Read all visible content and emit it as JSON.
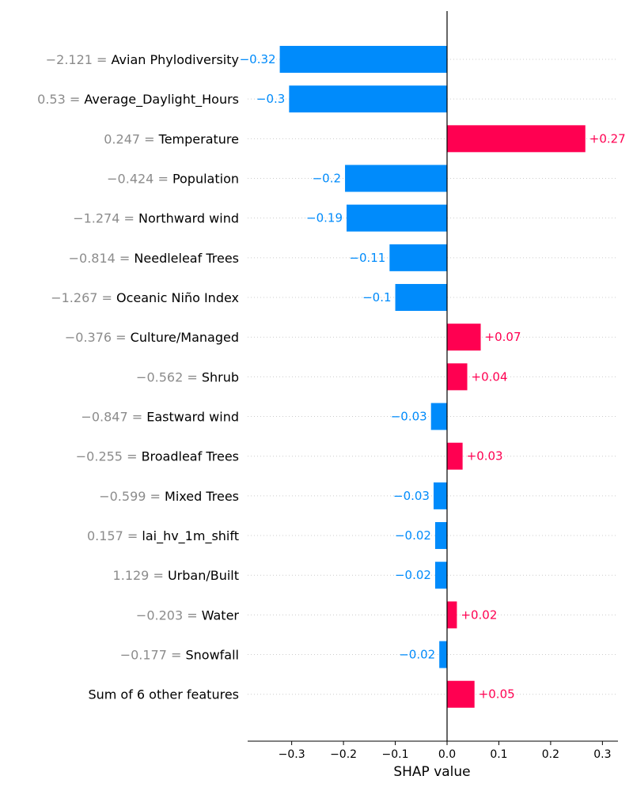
{
  "chart_data": {
    "type": "bar",
    "orientation": "horizontal",
    "xlabel": "SHAP value",
    "xlim": [
      -0.385,
      0.33
    ],
    "xticks": [
      -0.3,
      -0.2,
      -0.1,
      0.0,
      0.1,
      0.2,
      0.3
    ],
    "xtick_labels": [
      "−0.3",
      "−0.2",
      "−0.1",
      "0.0",
      "0.1",
      "0.2",
      "0.3"
    ],
    "colors": {
      "positive": "#ff0051",
      "negative": "#008bfb",
      "value_text": "#8c8c8c",
      "grid": "#cccccc"
    },
    "features": [
      {
        "value": "−2.121",
        "name": "Avian Phylodiversity",
        "shap": -0.323,
        "label": "−0.32"
      },
      {
        "value": "0.53",
        "name": "Average_Daylight_Hours",
        "shap": -0.305,
        "label": "−0.3"
      },
      {
        "value": "0.247",
        "name": "Temperature",
        "shap": 0.267,
        "label": "+0.27"
      },
      {
        "value": "−0.424",
        "name": "Population",
        "shap": -0.197,
        "label": "−0.2"
      },
      {
        "value": "−1.274",
        "name": "Northward wind",
        "shap": -0.194,
        "label": "−0.19"
      },
      {
        "value": "−0.814",
        "name": "Needleleaf Trees",
        "shap": -0.111,
        "label": "−0.11"
      },
      {
        "value": "−1.267",
        "name": "Oceanic Niño Index",
        "shap": -0.1,
        "label": "−0.1"
      },
      {
        "value": "−0.376",
        "name": "Culture/Managed",
        "shap": 0.065,
        "label": "+0.07"
      },
      {
        "value": "−0.562",
        "name": "Shrub",
        "shap": 0.039,
        "label": "+0.04"
      },
      {
        "value": "−0.847",
        "name": "Eastward wind",
        "shap": -0.031,
        "label": "−0.03"
      },
      {
        "value": "−0.255",
        "name": "Broadleaf Trees",
        "shap": 0.03,
        "label": "+0.03"
      },
      {
        "value": "−0.599",
        "name": "Mixed Trees",
        "shap": -0.026,
        "label": "−0.03"
      },
      {
        "value": "0.157",
        "name": "lai_hv_1m_shift",
        "shap": -0.023,
        "label": "−0.02"
      },
      {
        "value": "1.129",
        "name": "Urban/Built",
        "shap": -0.023,
        "label": "−0.02"
      },
      {
        "value": "−0.203",
        "name": "Water",
        "shap": 0.019,
        "label": "+0.02"
      },
      {
        "value": "−0.177",
        "name": "Snowfall",
        "shap": -0.015,
        "label": "−0.02"
      },
      {
        "value": "",
        "name": "Sum of 6 other features",
        "shap": 0.053,
        "label": "+0.05"
      }
    ]
  }
}
